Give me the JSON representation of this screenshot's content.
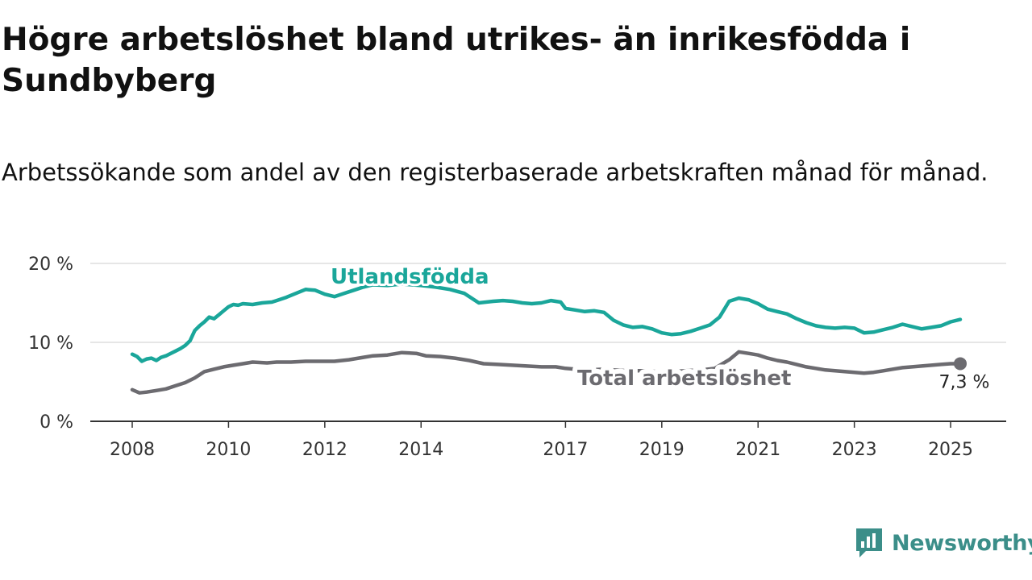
{
  "title": "Högre arbetslöshet bland utrikes- än inrikesfödda i Sundbyberg",
  "subtitle": "Arbetssökande som andel av den registerbaserade arbetskraften månad för månad.",
  "brand": {
    "name": "Newsworthy",
    "color": "#3b8e89",
    "icon": "newsworthy-logo-icon"
  },
  "chart_data": {
    "type": "line",
    "title": "Högre arbetslöshet bland utrikes- än inrikesfödda i Sundbyberg",
    "subtitle": "Arbetssökande som andel av den registerbaserade arbetskraften månad för månad.",
    "xlabel": "",
    "ylabel": "",
    "xlim": [
      2008,
      2025.25
    ],
    "ylim": [
      0,
      20
    ],
    "x_ticks": [
      2008,
      2010,
      2012,
      2014,
      2017,
      2019,
      2021,
      2023,
      2025
    ],
    "x_tick_labels": [
      "2008",
      "2010",
      "2012",
      "2014",
      "2017",
      "2019",
      "2021",
      "2023",
      "2025"
    ],
    "y_ticks": [
      0,
      10,
      20
    ],
    "y_tick_labels": [
      "0 %",
      "10 %",
      "20 %"
    ],
    "grid": true,
    "legend": "inline-labels",
    "end_label": "7,3 %",
    "series": [
      {
        "name": "Utlandsfödda",
        "color": "#1aa69a",
        "x": [
          2008,
          2008.1,
          2008.2,
          2008.3,
          2008.4,
          2008.5,
          2008.6,
          2008.7,
          2008.8,
          2008.9,
          2009,
          2009.1,
          2009.2,
          2009.3,
          2009.4,
          2009.5,
          2009.6,
          2009.7,
          2009.8,
          2009.9,
          2010,
          2010.1,
          2010.2,
          2010.3,
          2010.5,
          2010.7,
          2010.9,
          2011,
          2011.2,
          2011.4,
          2011.6,
          2011.8,
          2012,
          2012.2,
          2012.4,
          2012.6,
          2012.8,
          2013,
          2013.3,
          2013.6,
          2014,
          2014.3,
          2014.6,
          2014.9,
          2015.2,
          2015.5,
          2015.7,
          2015.9,
          2016.1,
          2016.3,
          2016.5,
          2016.7,
          2016.9,
          2017,
          2017.2,
          2017.4,
          2017.6,
          2017.8,
          2018,
          2018.2,
          2018.4,
          2018.6,
          2018.8,
          2019,
          2019.2,
          2019.4,
          2019.6,
          2019.8,
          2020,
          2020.2,
          2020.4,
          2020.6,
          2020.8,
          2021,
          2021.2,
          2021.4,
          2021.6,
          2021.8,
          2022,
          2022.2,
          2022.4,
          2022.6,
          2022.8,
          2023,
          2023.2,
          2023.4,
          2023.6,
          2023.8,
          2024,
          2024.2,
          2024.4,
          2024.6,
          2024.8,
          2025,
          2025.2
        ],
        "values": [
          8.5,
          8.2,
          7.6,
          7.9,
          8.0,
          7.7,
          8.1,
          8.3,
          8.6,
          8.9,
          9.2,
          9.6,
          10.2,
          11.5,
          12.1,
          12.6,
          13.2,
          13.0,
          13.5,
          14.0,
          14.5,
          14.8,
          14.7,
          14.9,
          14.8,
          15.0,
          15.1,
          15.3,
          15.7,
          16.2,
          16.7,
          16.6,
          16.1,
          15.8,
          16.2,
          16.6,
          17.0,
          17.3,
          17.2,
          17.4,
          17.2,
          17.0,
          16.7,
          16.2,
          15.0,
          15.2,
          15.3,
          15.2,
          15.0,
          14.9,
          15.0,
          15.3,
          15.1,
          14.3,
          14.1,
          13.9,
          14.0,
          13.8,
          12.8,
          12.2,
          11.9,
          12.0,
          11.7,
          11.2,
          11.0,
          11.1,
          11.4,
          11.8,
          12.2,
          13.2,
          15.2,
          15.6,
          15.4,
          14.9,
          14.2,
          13.9,
          13.6,
          13.0,
          12.5,
          12.1,
          11.9,
          11.8,
          11.9,
          11.8,
          11.2,
          11.3,
          11.6,
          11.9,
          12.3,
          12.0,
          11.7,
          11.9,
          12.1,
          12.6,
          12.9
        ]
      },
      {
        "name": "Total arbetslöshet",
        "color": "#6c6b70",
        "x": [
          2008,
          2008.15,
          2008.3,
          2008.5,
          2008.7,
          2008.9,
          2009.1,
          2009.3,
          2009.5,
          2009.7,
          2009.9,
          2010.1,
          2010.3,
          2010.5,
          2010.8,
          2011,
          2011.3,
          2011.6,
          2011.9,
          2012.2,
          2012.5,
          2012.8,
          2013,
          2013.3,
          2013.6,
          2013.9,
          2014.1,
          2014.4,
          2014.7,
          2015,
          2015.3,
          2015.6,
          2015.9,
          2016.2,
          2016.5,
          2016.8,
          2017,
          2017.2,
          2017.5,
          2017.8,
          2018,
          2018.3,
          2018.6,
          2018.9,
          2019.2,
          2019.5,
          2019.8,
          2020.1,
          2020.4,
          2020.6,
          2020.8,
          2021,
          2021.2,
          2021.4,
          2021.6,
          2021.8,
          2022,
          2022.2,
          2022.4,
          2022.6,
          2022.8,
          2023,
          2023.2,
          2023.4,
          2023.6,
          2023.8,
          2024,
          2024.2,
          2024.4,
          2024.6,
          2024.8,
          2025,
          2025.2
        ],
        "values": [
          4.0,
          3.6,
          3.7,
          3.9,
          4.1,
          4.5,
          4.9,
          5.5,
          6.3,
          6.6,
          6.9,
          7.1,
          7.3,
          7.5,
          7.4,
          7.5,
          7.5,
          7.6,
          7.6,
          7.6,
          7.8,
          8.1,
          8.3,
          8.4,
          8.7,
          8.6,
          8.3,
          8.2,
          8.0,
          7.7,
          7.3,
          7.2,
          7.1,
          7.0,
          6.9,
          6.9,
          6.7,
          6.6,
          6.5,
          6.6,
          6.5,
          6.4,
          6.4,
          6.3,
          6.3,
          6.4,
          6.5,
          6.7,
          7.8,
          8.8,
          8.6,
          8.4,
          8.0,
          7.7,
          7.5,
          7.2,
          6.9,
          6.7,
          6.5,
          6.4,
          6.3,
          6.2,
          6.1,
          6.2,
          6.4,
          6.6,
          6.8,
          6.9,
          7.0,
          7.1,
          7.2,
          7.3,
          7.3
        ]
      }
    ]
  }
}
